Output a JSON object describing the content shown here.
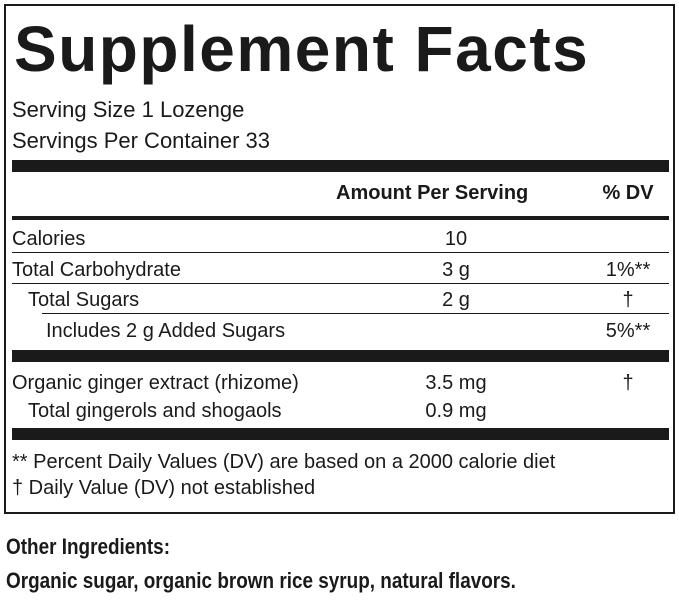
{
  "title": "Supplement Facts",
  "serving_size": "Serving Size 1 Lozenge",
  "servings_per_container": "Servings Per Container 33",
  "header": {
    "amount": "Amount Per Serving",
    "dv": "% DV"
  },
  "rows": [
    {
      "name": "Calories",
      "amount": "10"
    },
    {
      "name": "Total Carbohydrate",
      "amount": "3 g",
      "dv": "1%**"
    },
    {
      "name": "Total Sugars",
      "amount": "2 g",
      "dv": "†"
    },
    {
      "name": "Includes 2 g Added Sugars",
      "dv": "5%**"
    },
    {
      "name": "Organic ginger extract (rhizome)",
      "amount": "3.5 mg",
      "dv": "†"
    },
    {
      "name": "Total gingerols and shogaols",
      "amount": "0.9 mg"
    }
  ],
  "footnotes": [
    "** Percent Daily Values (DV) are based on a 2000 calorie diet",
    "† Daily Value (DV) not established"
  ],
  "other_ingredients": {
    "title": "Other Ingredients:",
    "text": "Organic sugar, organic brown rice syrup, natural flavors."
  }
}
